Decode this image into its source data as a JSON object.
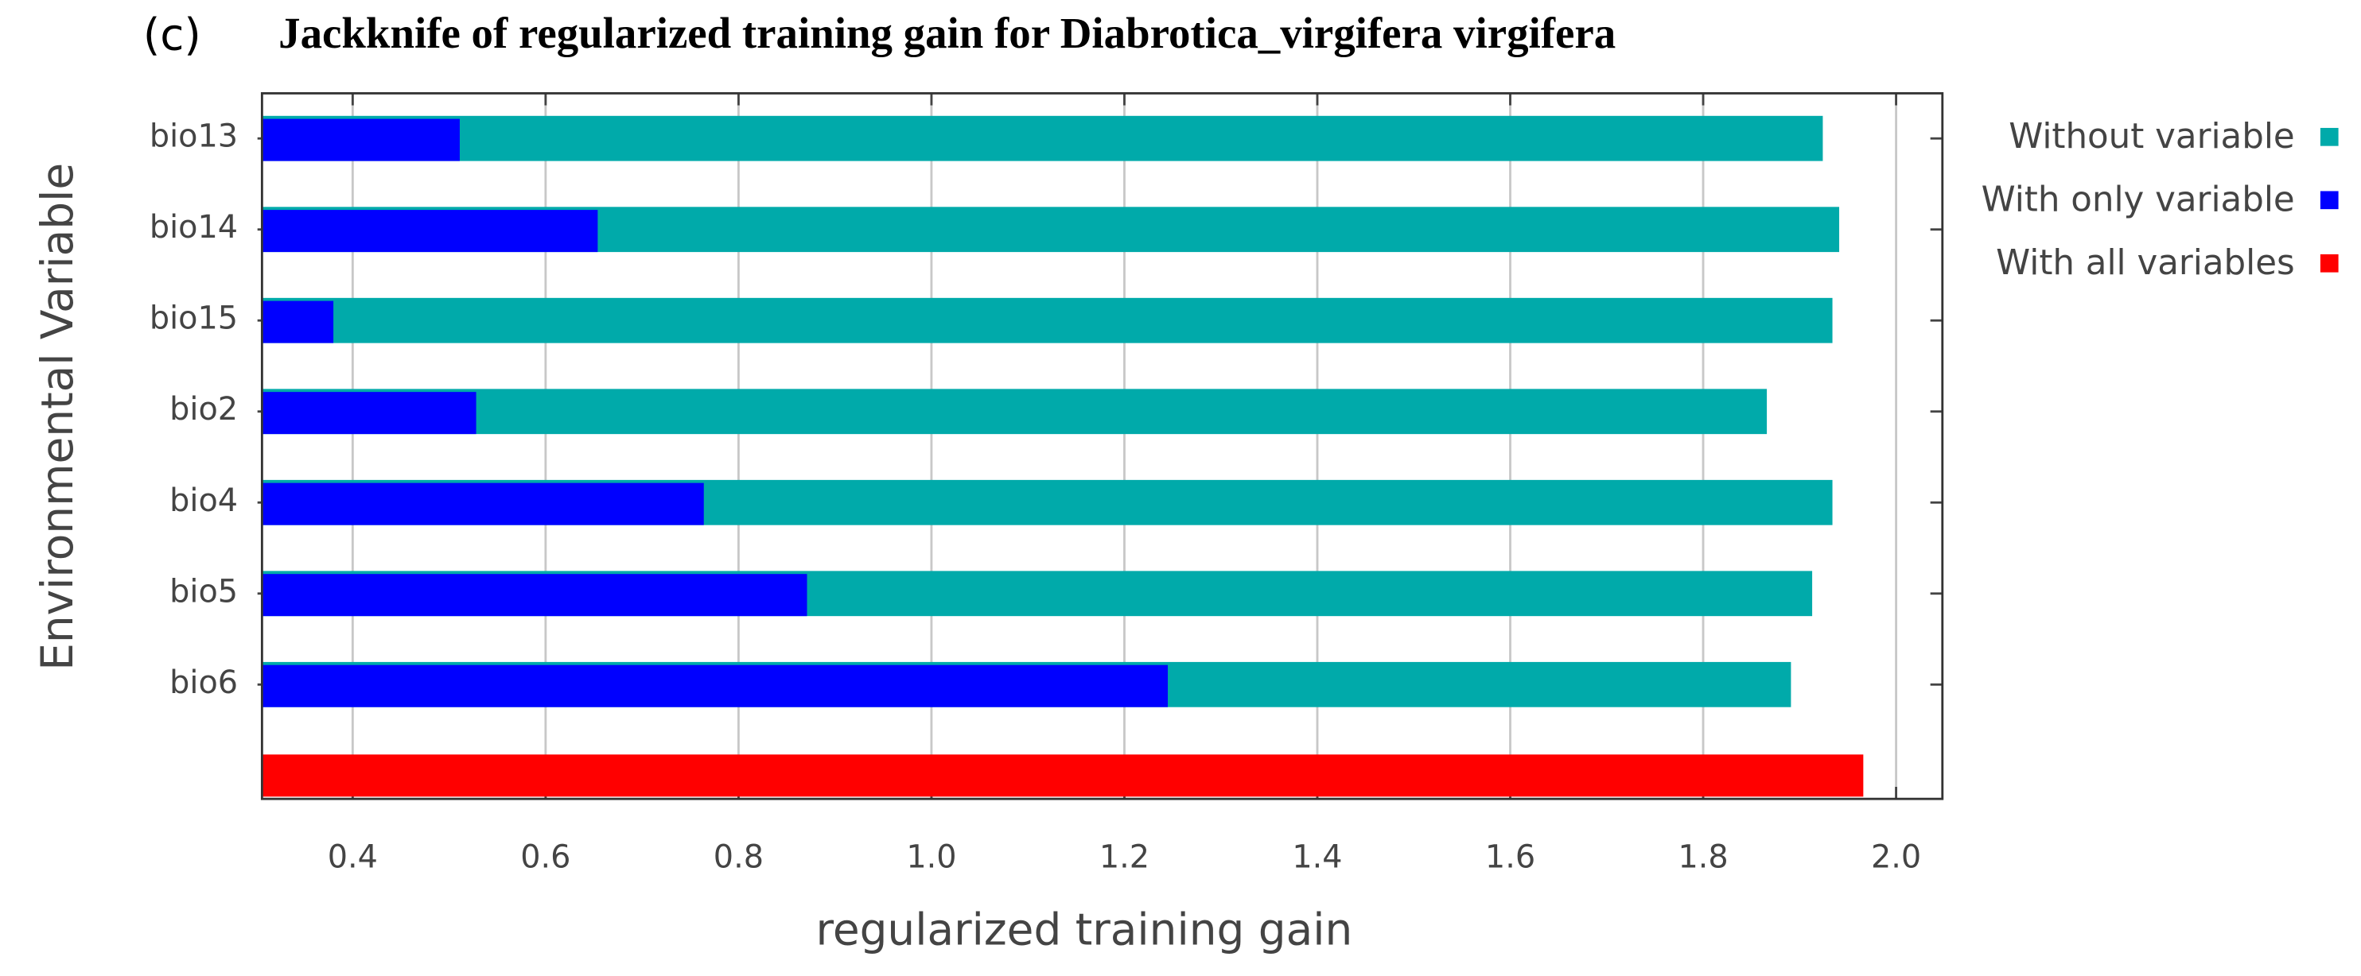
{
  "chart_data": {
    "type": "bar",
    "orientation": "horizontal",
    "panel_label": "(c)",
    "title": "Jackknife of regularized training gain for Diabrotica_virgifera virgifera",
    "x_label": "regularized training gain",
    "y_label": "Environmental Variable",
    "categories": [
      "bio13",
      "bio14",
      "bio15",
      "bio2",
      "bio4",
      "bio5",
      "bio6",
      null
    ],
    "series": [
      {
        "name": "Without variable",
        "color": "#00aaaa",
        "values": [
          1.924,
          1.941,
          1.934,
          1.866,
          1.934,
          1.913,
          1.891,
          null
        ]
      },
      {
        "name": "With only variable",
        "color": "#0000ff",
        "values": [
          0.511,
          0.654,
          0.38,
          0.528,
          0.764,
          0.871,
          1.245,
          null
        ]
      },
      {
        "name": "With all variables",
        "color": "#ff0000",
        "values": [
          null,
          null,
          null,
          null,
          null,
          null,
          null,
          1.966
        ]
      }
    ],
    "xlim": [
      0.306,
      2.048
    ],
    "xticks": [
      0.4,
      0.6,
      0.8,
      {
        "value": 1,
        "label": "1.0"
      },
      1.2,
      1.4,
      1.6,
      1.8,
      {
        "value": 2,
        "label": "2.0"
      }
    ],
    "grid": true,
    "legend": "right"
  }
}
